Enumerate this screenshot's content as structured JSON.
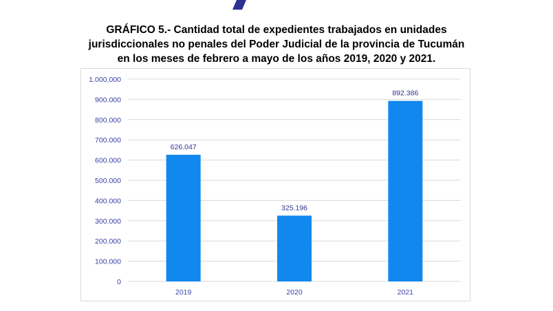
{
  "title_lines": [
    "GRÁFICO 5.- Cantidad total de expedientes trabajados en unidades",
    "jurisdiccionales no penales del Poder Judicial de la provincia de Tucumán",
    "en los meses de febrero a mayo de los años 2019, 2020 y 2021."
  ],
  "colors": {
    "bar": "#1188ee",
    "grid": "#d9d9d9",
    "axis_text": "#3a3fa6",
    "top_mark": "#2e3192"
  },
  "chart_data": {
    "type": "bar",
    "categories": [
      "2019",
      "2020",
      "2021"
    ],
    "values": [
      626047,
      325196,
      892386
    ],
    "data_labels": [
      "626.047",
      "325.196",
      "892.386"
    ],
    "ylim": [
      0,
      1000000
    ],
    "y_ticks": [
      0,
      100000,
      200000,
      300000,
      400000,
      500000,
      600000,
      700000,
      800000,
      900000,
      1000000
    ],
    "y_tick_labels": [
      "0",
      "100.000",
      "200.000",
      "300.000",
      "400.000",
      "500.000",
      "600.000",
      "700.000",
      "800.000",
      "900.000",
      "1.000.000"
    ],
    "xlabel": "",
    "ylabel": "",
    "grid": true,
    "legend": "none"
  }
}
